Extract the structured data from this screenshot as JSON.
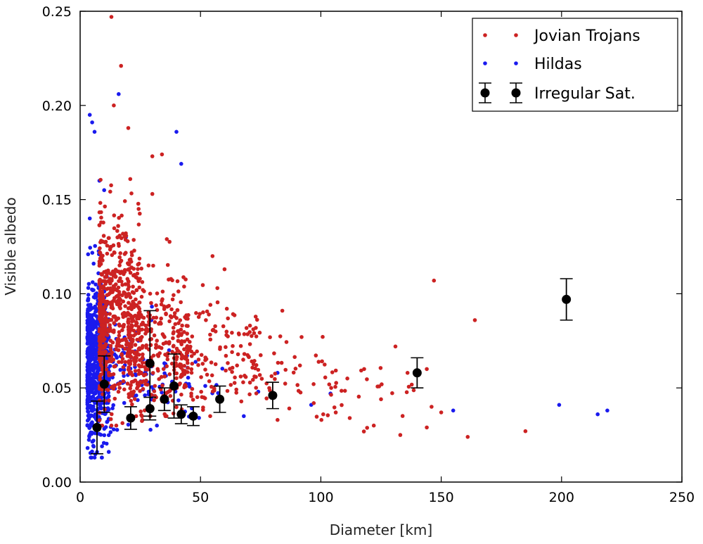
{
  "chart_data": {
    "type": "scatter",
    "title": "",
    "xlabel": "Diameter [km]",
    "ylabel": "Visible albedo",
    "xlim": [
      0,
      250
    ],
    "ylim": [
      0,
      0.25
    ],
    "x_ticks": [
      0,
      50,
      100,
      150,
      200,
      250
    ],
    "y_ticks": [
      0.0,
      0.05,
      0.1,
      0.15,
      0.2,
      0.25
    ],
    "x_tick_labels": [
      "0",
      "50",
      "100",
      "150",
      "200",
      "250"
    ],
    "y_tick_labels": [
      "0.00",
      "0.05",
      "0.10",
      "0.15",
      "0.20",
      "0.25"
    ],
    "grid": false,
    "legend_position": "top-right",
    "series": [
      {
        "name": "Jovian Trojans",
        "color": "#cc2222",
        "marker": "dot",
        "cloud": [
          {
            "n": 550,
            "x_min": 8,
            "x_max": 26,
            "y_mean": 0.09,
            "y_sd": 0.025,
            "y_min": 0.03,
            "y_max": 0.2
          },
          {
            "n": 320,
            "x_min": 20,
            "x_max": 45,
            "y_mean": 0.075,
            "y_sd": 0.018,
            "y_min": 0.035,
            "y_max": 0.14
          },
          {
            "n": 160,
            "x_min": 40,
            "x_max": 75,
            "y_mean": 0.068,
            "y_sd": 0.014,
            "y_min": 0.035,
            "y_max": 0.12
          },
          {
            "n": 50,
            "x_min": 70,
            "x_max": 110,
            "y_mean": 0.056,
            "y_sd": 0.012,
            "y_min": 0.033,
            "y_max": 0.09
          },
          {
            "n": 25,
            "x_min": 100,
            "x_max": 140,
            "y_mean": 0.048,
            "y_sd": 0.01,
            "y_min": 0.025,
            "y_max": 0.075
          }
        ],
        "points": [
          {
            "x": 13,
            "y": 0.247
          },
          {
            "x": 17,
            "y": 0.221
          },
          {
            "x": 14,
            "y": 0.2
          },
          {
            "x": 20,
            "y": 0.188
          },
          {
            "x": 30,
            "y": 0.173
          },
          {
            "x": 34,
            "y": 0.174
          },
          {
            "x": 30,
            "y": 0.153
          },
          {
            "x": 36,
            "y": 0.129
          },
          {
            "x": 55,
            "y": 0.12
          },
          {
            "x": 60,
            "y": 0.113
          },
          {
            "x": 57,
            "y": 0.103
          },
          {
            "x": 84,
            "y": 0.091
          },
          {
            "x": 147,
            "y": 0.107
          },
          {
            "x": 164,
            "y": 0.086
          },
          {
            "x": 131,
            "y": 0.072
          },
          {
            "x": 136,
            "y": 0.058
          },
          {
            "x": 144,
            "y": 0.06
          },
          {
            "x": 146,
            "y": 0.04
          },
          {
            "x": 150,
            "y": 0.037
          },
          {
            "x": 144,
            "y": 0.029
          },
          {
            "x": 133,
            "y": 0.025
          },
          {
            "x": 122,
            "y": 0.03
          },
          {
            "x": 161,
            "y": 0.024
          },
          {
            "x": 185,
            "y": 0.027
          },
          {
            "x": 118,
            "y": 0.06
          },
          {
            "x": 125,
            "y": 0.044
          },
          {
            "x": 111,
            "y": 0.055
          },
          {
            "x": 97,
            "y": 0.052
          },
          {
            "x": 101,
            "y": 0.036
          },
          {
            "x": 112,
            "y": 0.034
          },
          {
            "x": 92,
            "y": 0.077
          },
          {
            "x": 82,
            "y": 0.033
          }
        ]
      },
      {
        "name": "Hildas",
        "color": "#1a1aee",
        "marker": "dot",
        "cloud": [
          {
            "n": 650,
            "x_min": 3,
            "x_max": 12,
            "y_mean": 0.065,
            "y_sd": 0.022,
            "y_min": 0.013,
            "y_max": 0.145
          },
          {
            "n": 90,
            "x_min": 10,
            "x_max": 30,
            "y_mean": 0.06,
            "y_sd": 0.015,
            "y_min": 0.02,
            "y_max": 0.1
          },
          {
            "n": 40,
            "x_min": 28,
            "x_max": 60,
            "y_mean": 0.05,
            "y_sd": 0.01,
            "y_min": 0.03,
            "y_max": 0.07
          }
        ],
        "points": [
          {
            "x": 4,
            "y": 0.195
          },
          {
            "x": 5,
            "y": 0.191
          },
          {
            "x": 6,
            "y": 0.186
          },
          {
            "x": 16,
            "y": 0.206
          },
          {
            "x": 40,
            "y": 0.186
          },
          {
            "x": 42,
            "y": 0.169
          },
          {
            "x": 8,
            "y": 0.16
          },
          {
            "x": 10,
            "y": 0.155
          },
          {
            "x": 4,
            "y": 0.14
          },
          {
            "x": 19,
            "y": 0.13
          },
          {
            "x": 68,
            "y": 0.035
          },
          {
            "x": 74,
            "y": 0.048
          },
          {
            "x": 82,
            "y": 0.058
          },
          {
            "x": 96,
            "y": 0.041
          },
          {
            "x": 104,
            "y": 0.047
          },
          {
            "x": 155,
            "y": 0.038
          },
          {
            "x": 199,
            "y": 0.041
          },
          {
            "x": 215,
            "y": 0.036
          },
          {
            "x": 219,
            "y": 0.038
          },
          {
            "x": 7,
            "y": 0.016
          },
          {
            "x": 9,
            "y": 0.013
          },
          {
            "x": 3,
            "y": 0.03
          }
        ]
      },
      {
        "name": "Irregular Sat.",
        "color": "#000000",
        "marker": "errorbar",
        "points": [
          {
            "x": 7,
            "y": 0.029,
            "y_lo": 0.015,
            "y_hi": 0.043
          },
          {
            "x": 10,
            "y": 0.052,
            "y_lo": 0.037,
            "y_hi": 0.067
          },
          {
            "x": 21,
            "y": 0.034,
            "y_lo": 0.028,
            "y_hi": 0.04
          },
          {
            "x": 29,
            "y": 0.063,
            "y_lo": 0.035,
            "y_hi": 0.091
          },
          {
            "x": 29,
            "y": 0.039,
            "y_lo": 0.033,
            "y_hi": 0.045
          },
          {
            "x": 35,
            "y": 0.044,
            "y_lo": 0.038,
            "y_hi": 0.05
          },
          {
            "x": 39,
            "y": 0.051,
            "y_lo": 0.034,
            "y_hi": 0.068
          },
          {
            "x": 42,
            "y": 0.036,
            "y_lo": 0.031,
            "y_hi": 0.041
          },
          {
            "x": 47,
            "y": 0.035,
            "y_lo": 0.03,
            "y_hi": 0.04
          },
          {
            "x": 58,
            "y": 0.044,
            "y_lo": 0.037,
            "y_hi": 0.051
          },
          {
            "x": 80,
            "y": 0.046,
            "y_lo": 0.039,
            "y_hi": 0.053
          },
          {
            "x": 140,
            "y": 0.058,
            "y_lo": 0.05,
            "y_hi": 0.066
          },
          {
            "x": 202,
            "y": 0.097,
            "y_lo": 0.086,
            "y_hi": 0.108
          }
        ]
      }
    ]
  }
}
